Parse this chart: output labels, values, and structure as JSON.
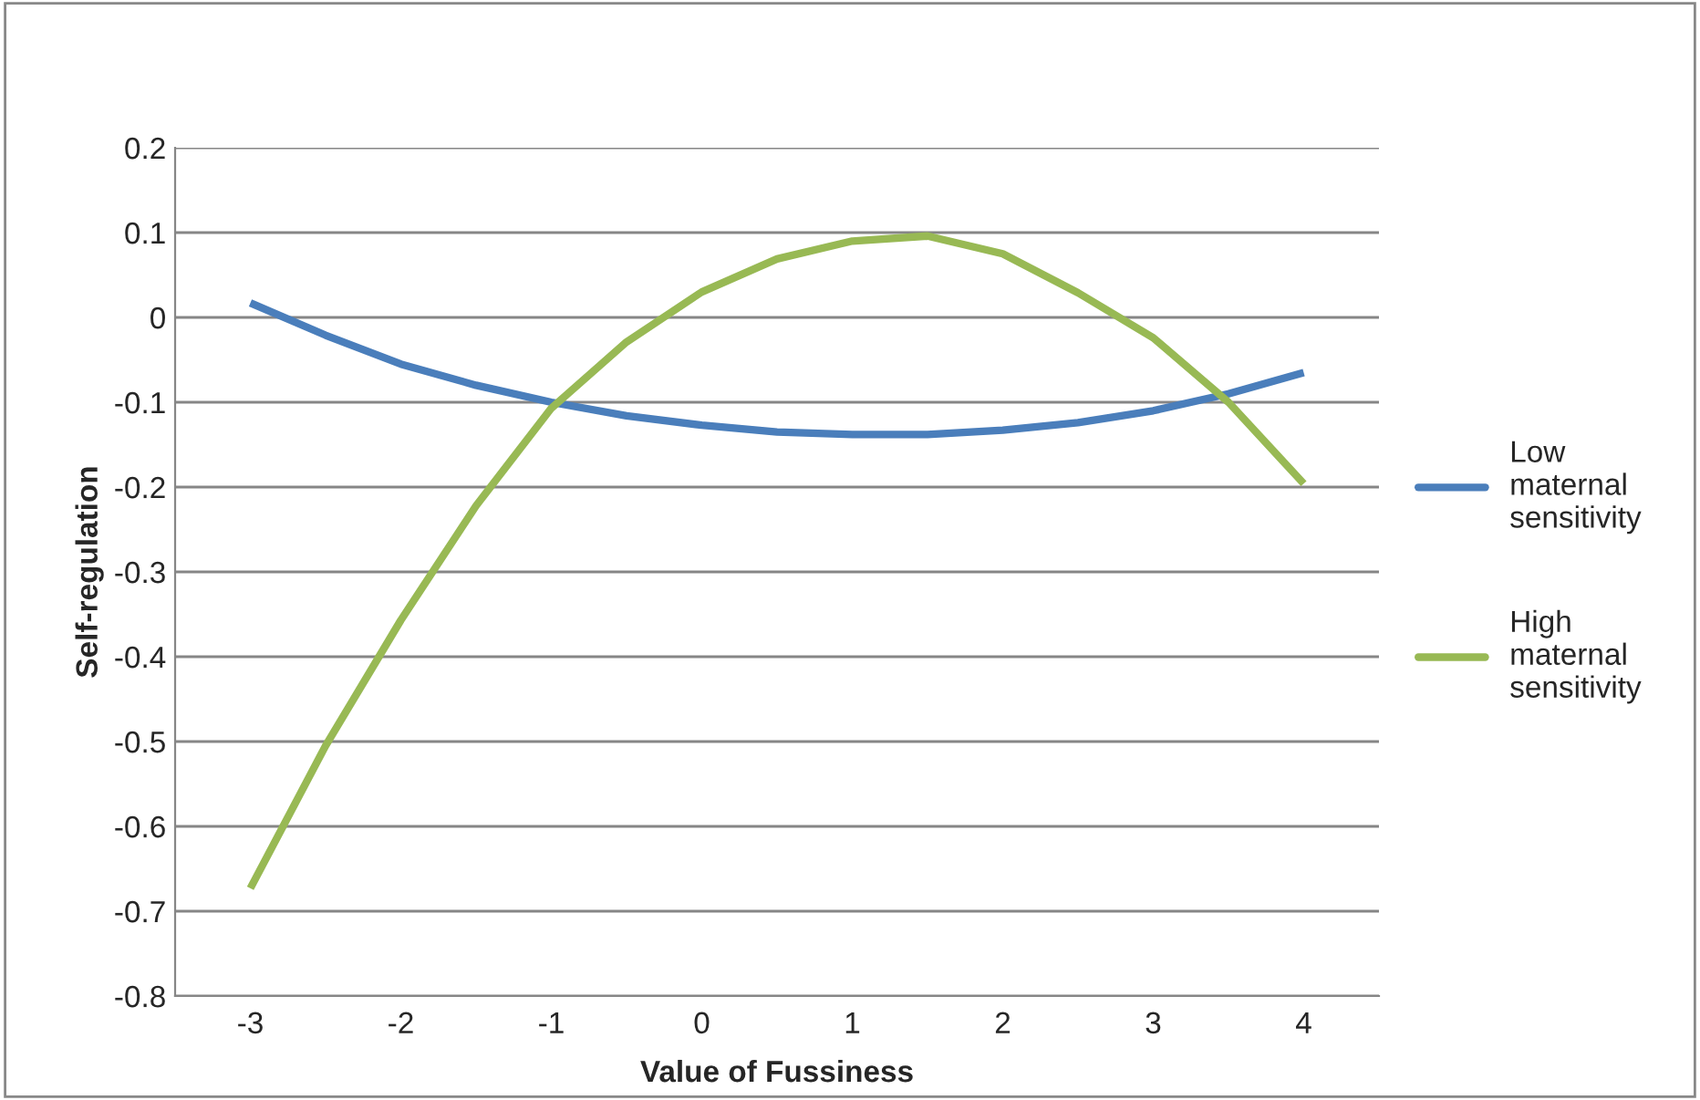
{
  "chart_data": {
    "type": "line",
    "xlabel": "Value of Fussiness",
    "ylabel": "Self-regulation",
    "x": [
      -3,
      -2.5,
      -2,
      -1.5,
      -1,
      -0.5,
      0,
      0.5,
      1,
      1.5,
      2,
      2.5,
      3,
      3.5,
      4
    ],
    "series": [
      {
        "name": "Low maternal sensitivity",
        "color": "#4a7ebb",
        "values": [
          0.017,
          -0.021,
          -0.055,
          -0.08,
          -0.1,
          -0.116,
          -0.127,
          -0.135,
          -0.138,
          -0.138,
          -0.133,
          -0.124,
          -0.11,
          -0.09,
          -0.065
        ]
      },
      {
        "name": "High maternal sensitivity",
        "color": "#98b954",
        "values": [
          -0.673,
          -0.505,
          -0.357,
          -0.222,
          -0.107,
          -0.029,
          0.03,
          0.069,
          0.09,
          0.096,
          0.075,
          0.029,
          -0.024,
          -0.1,
          -0.196
        ]
      }
    ],
    "xlim": [
      -3.5,
      4.5
    ],
    "xticks": [
      -3,
      -2,
      -1,
      0,
      1,
      2,
      3,
      4
    ],
    "ylim": [
      -0.8,
      0.2
    ],
    "yticks": [
      -0.8,
      -0.7,
      -0.6,
      -0.5,
      -0.4,
      -0.3,
      -0.2,
      -0.1,
      0,
      0.1,
      0.2
    ],
    "grid": "y",
    "legend": "right",
    "marker": "none",
    "line_style": "solid"
  }
}
